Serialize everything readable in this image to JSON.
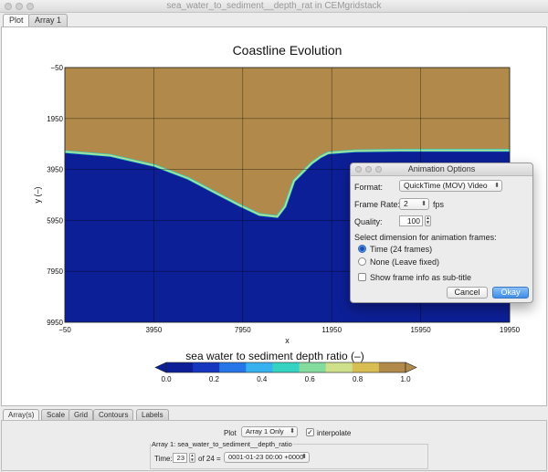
{
  "window": {
    "title": "sea_water_to_sediment__depth_rat in CEMgridstack"
  },
  "top_tabs": [
    {
      "label": "Plot"
    },
    {
      "label": "Array 1"
    }
  ],
  "plot": {
    "title": "Coastline Evolution",
    "xlabel": "x",
    "ylabel": "y (–)",
    "x_ticks": [
      "−50",
      "3950",
      "7950",
      "11950",
      "15950",
      "19950"
    ],
    "y_ticks": [
      "−50",
      "1950",
      "3950",
      "5950",
      "7950",
      "9950"
    ],
    "land_color": "#b1894a",
    "water_color": "#0d1f96",
    "colorbar": {
      "title": "sea water to sediment  depth ratio (–)",
      "ticks": [
        "0.0",
        "0.2",
        "0.4",
        "0.6",
        "0.8",
        "1.0"
      ],
      "colors": [
        "#0d1f96",
        "#1536bd",
        "#2776e8",
        "#37b2ef",
        "#36d3c2",
        "#83dc9d",
        "#cfe08a",
        "#d8bd52",
        "#b1894a"
      ],
      "under_color": "#0d1f96",
      "over_color": "#b1894a"
    }
  },
  "chart_data": {
    "type": "heatmap",
    "title": "Coastline Evolution",
    "xlabel": "x",
    "ylabel": "y (–)",
    "xlim": [
      -50,
      19950
    ],
    "ylim": [
      -50,
      9950
    ],
    "y_inverted": true,
    "colorbar_label": "sea water to sediment  depth ratio (–)",
    "colorbar_range": [
      0.0,
      1.0
    ],
    "shoreline": {
      "x": [
        -50,
        2000,
        4000,
        5500,
        6800,
        7800,
        8700,
        9500,
        9850,
        10250,
        10650,
        11050,
        11450,
        11800,
        13000,
        15000,
        17000,
        19950
      ],
      "y": [
        3250,
        3400,
        3800,
        4300,
        4900,
        5350,
        5720,
        5800,
        5400,
        4400,
        4050,
        3700,
        3450,
        3300,
        3220,
        3200,
        3200,
        3200
      ]
    },
    "upper_region_value": 1.0,
    "lower_region_value": 0.0
  },
  "dialog": {
    "title": "Animation Options",
    "format_label": "Format:",
    "format_value": "QuickTime (MOV) Video",
    "frame_rate_label": "Frame Rate:",
    "frame_rate_value": "2",
    "fps_label": "fps",
    "quality_label": "Quality:",
    "quality_value": "100",
    "select_dim_label": "Select dimension for animation frames:",
    "radio_time": "Time (24 frames)",
    "radio_none": "None (Leave fixed)",
    "show_frame_info": "Show frame info as sub-title",
    "cancel": "Cancel",
    "okay": "Okay"
  },
  "bottom_tabs": [
    {
      "label": "Array(s)"
    },
    {
      "label": "Scale"
    },
    {
      "label": "Grid"
    },
    {
      "label": "Contours"
    },
    {
      "label": "Labels"
    }
  ],
  "controls": {
    "plot_label": "Plot",
    "plot_select": "Array 1 Only",
    "interpolate_label": "interpolate",
    "interpolate_checked": true,
    "array_group_label": "Array 1: sea_water_to_sediment__depth_ratio",
    "time_label": "Time:",
    "time_value": "23",
    "of_label": "of 24 =",
    "time_select": "0001-01-23 00:00 +0000"
  }
}
